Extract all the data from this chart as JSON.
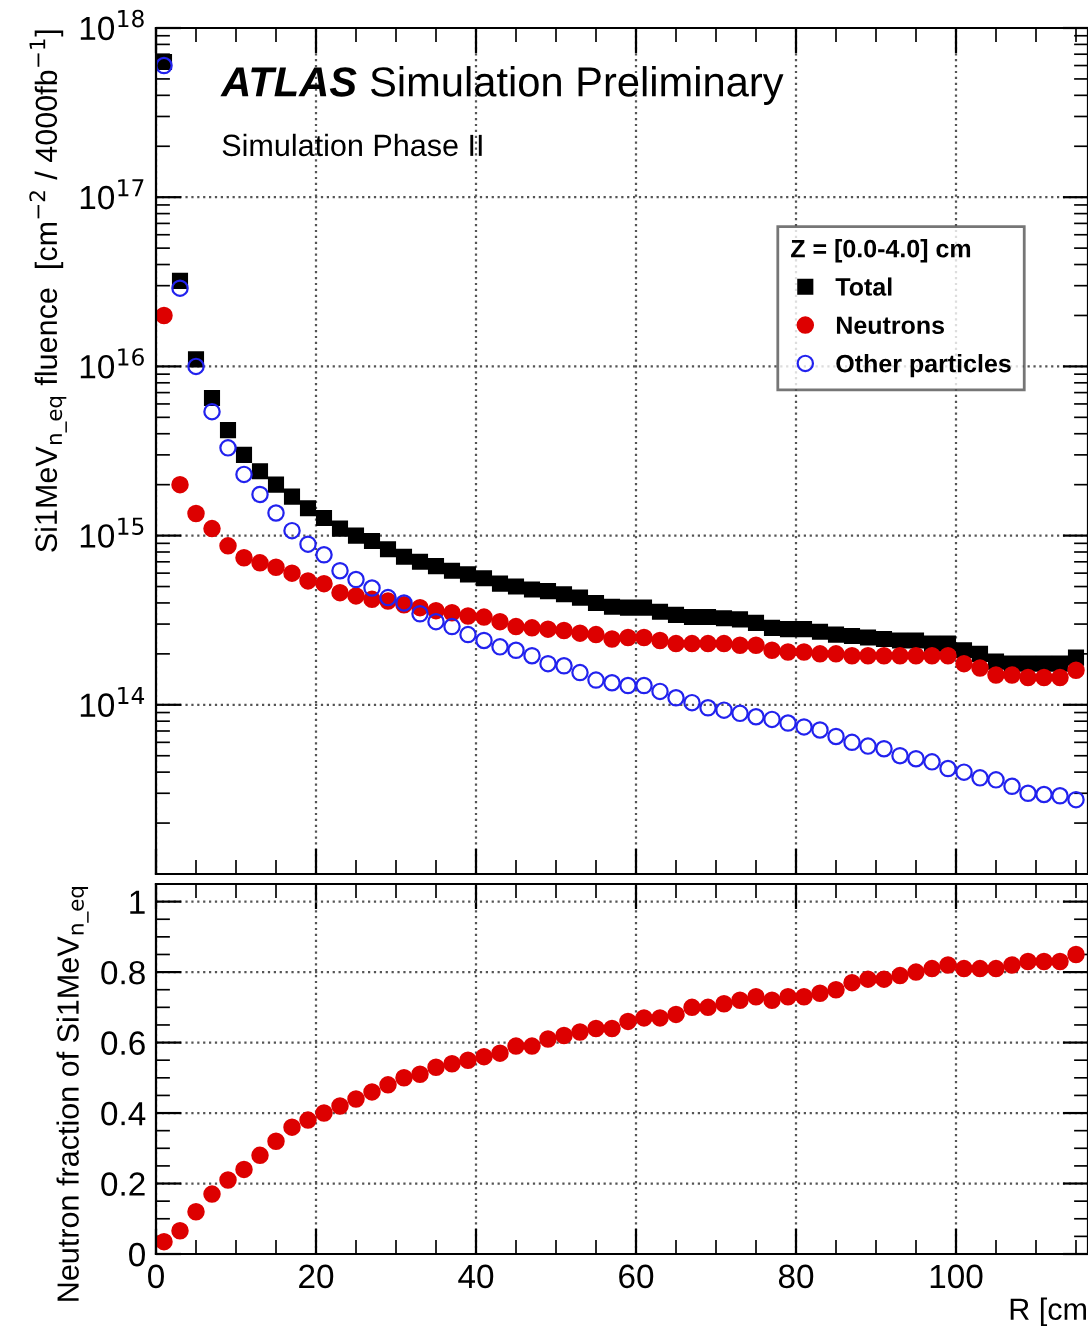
{
  "chart_data": [
    {
      "type": "scatter",
      "title": "ATLAS Simulation Preliminary",
      "subtitle": "Simulation Phase II",
      "ylabel": "Si1MeV$_{n_eq}$ fluence  [cm$^{−2}$ / 4000fb$^{−1}$]",
      "legend_title": "Z = [0.0-4.0] cm",
      "legend": "top right",
      "grid": true,
      "log": "y",
      "tick_labels": "y",
      "x": [
        1,
        3,
        5,
        7,
        9,
        11,
        13,
        15,
        17,
        19,
        21,
        23,
        25,
        27,
        29,
        31,
        33,
        35,
        37,
        39,
        41,
        43,
        45,
        47,
        49,
        51,
        53,
        55,
        57,
        59,
        61,
        63,
        65,
        67,
        69,
        71,
        73,
        75,
        77,
        79,
        81,
        83,
        85,
        87,
        89,
        91,
        93,
        95,
        97,
        99,
        101,
        103,
        105,
        107,
        109,
        111,
        113,
        115
      ],
      "xlim": [
        0,
        116.5
      ],
      "xticks": [
        0,
        20,
        40,
        60,
        80,
        100
      ],
      "ylim": [
        10000000000000.0,
        1e+18
      ],
      "yticks": [
        {
          "value": 100000000000000.0,
          "label": "10$^{14}$"
        },
        {
          "value": 1000000000000000.0,
          "label": "10$^{15}$"
        },
        {
          "value": 1e+16,
          "label": "10$^{16}$"
        },
        {
          "value": 1e+17,
          "label": "10$^{17}$"
        },
        {
          "value": 1e+18,
          "label": "10$^{18}$"
        }
      ],
      "series": [
        {
          "name": "Total",
          "color": "#000000",
          "marker": "square",
          "values": [
            6.3e+17,
            3.2e+16,
            1.1e+16,
            6500000000000000.0,
            4200000000000000.0,
            3000000000000000.0,
            2400000000000000.0,
            2000000000000000.0,
            1700000000000000.0,
            1450000000000000.0,
            1270000000000000.0,
            1100000000000000.0,
            1000000000000000.0,
            930000000000000.0,
            830000000000000.0,
            750000000000000.0,
            700000000000000.0,
            660000000000000.0,
            620000000000000.0,
            590000000000000.0,
            560000000000000.0,
            520000000000000.0,
            500000000000000.0,
            480000000000000.0,
            470000000000000.0,
            450000000000000.0,
            430000000000000.0,
            400000000000000.0,
            380000000000000.0,
            375000000000000.0,
            375000000000000.0,
            355000000000000.0,
            340000000000000.0,
            330000000000000.0,
            330000000000000.0,
            325000000000000.0,
            320000000000000.0,
            305000000000000.0,
            285000000000000.0,
            280000000000000.0,
            280000000000000.0,
            270000000000000.0,
            260000000000000.0,
            255000000000000.0,
            250000000000000.0,
            245000000000000.0,
            240000000000000.0,
            240000000000000.0,
            230000000000000.0,
            230000000000000.0,
            210000000000000.0,
            200000000000000.0,
            180000000000000.0,
            175000000000000.0,
            175000000000000.0,
            175000000000000.0,
            175000000000000.0,
            190000000000000.0
          ]
        },
        {
          "name": "Neutrons",
          "color": "#dd0000",
          "marker": "circle",
          "values": [
            2e+16,
            2000000000000000.0,
            1350000000000000.0,
            1100000000000000.0,
            870000000000000.0,
            740000000000000.0,
            690000000000000.0,
            650000000000000.0,
            600000000000000.0,
            540000000000000.0,
            520000000000000.0,
            460000000000000.0,
            440000000000000.0,
            420000000000000.0,
            410000000000000.0,
            390000000000000.0,
            375000000000000.0,
            360000000000000.0,
            350000000000000.0,
            335000000000000.0,
            330000000000000.0,
            310000000000000.0,
            290000000000000.0,
            285000000000000.0,
            280000000000000.0,
            275000000000000.0,
            265000000000000.0,
            260000000000000.0,
            245000000000000.0,
            250000000000000.0,
            250000000000000.0,
            240000000000000.0,
            230000000000000.0,
            230000000000000.0,
            230000000000000.0,
            230000000000000.0,
            225000000000000.0,
            225000000000000.0,
            210000000000000.0,
            205000000000000.0,
            205000000000000.0,
            200000000000000.0,
            200000000000000.0,
            195000000000000.0,
            195000000000000.0,
            195000000000000.0,
            195000000000000.0,
            195000000000000.0,
            195000000000000.0,
            195000000000000.0,
            175000000000000.0,
            165000000000000.0,
            150000000000000.0,
            150000000000000.0,
            145000000000000.0,
            145000000000000.0,
            145000000000000.0,
            160000000000000.0
          ]
        },
        {
          "name": "Other particles",
          "color": "#2222ee",
          "marker": "circle",
          "values": [
            6e+17,
            2.9e+16,
            1e+16,
            5400000000000000.0,
            3300000000000000.0,
            2300000000000000.0,
            1750000000000000.0,
            1360000000000000.0,
            1070000000000000.0,
            890000000000000.0,
            770000000000000.0,
            620000000000000.0,
            550000000000000.0,
            490000000000000.0,
            430000000000000.0,
            400000000000000.0,
            345000000000000.0,
            310000000000000.0,
            290000000000000.0,
            260000000000000.0,
            240000000000000.0,
            220000000000000.0,
            210000000000000.0,
            195000000000000.0,
            175000000000000.0,
            170000000000000.0,
            155000000000000.0,
            140000000000000.0,
            135000000000000.0,
            130000000000000.0,
            130000000000000.0,
            120000000000000.0,
            110000000000000.0,
            103000000000000.0,
            96000000000000.0,
            93000000000000.0,
            89000000000000.0,
            85000000000000.0,
            82000000000000.0,
            78000000000000.0,
            74000000000000.0,
            71000000000000.0,
            65000000000000.0,
            60000000000000.0,
            57000000000000.0,
            55000000000000.0,
            50000000000000.0,
            48000000000000.0,
            46000000000000.0,
            42000000000000.0,
            40000000000000.0,
            37000000000000.0,
            36000000000000.0,
            33000000000000.0,
            30000000000000.0,
            29500000000000.0,
            29000000000000.0,
            27500000000000.0
          ]
        }
      ]
    },
    {
      "type": "scatter",
      "xlabel": "R [cm",
      "ylabel": "Neutron fraction of Si1MeV$_{n_eq}$",
      "grid": true,
      "marker": "circle",
      "x": [
        1,
        3,
        5,
        7,
        9,
        11,
        13,
        15,
        17,
        19,
        21,
        23,
        25,
        27,
        29,
        31,
        33,
        35,
        37,
        39,
        41,
        43,
        45,
        47,
        49,
        51,
        53,
        55,
        57,
        59,
        61,
        63,
        65,
        67,
        69,
        71,
        73,
        75,
        77,
        79,
        81,
        83,
        85,
        87,
        89,
        91,
        93,
        95,
        97,
        99,
        101,
        103,
        105,
        107,
        109,
        111,
        113,
        115
      ],
      "xlim": [
        0,
        116.5
      ],
      "xticks": [
        0,
        20,
        40,
        60,
        80,
        100
      ],
      "ylim": [
        0,
        1.05
      ],
      "yticks": [
        0,
        0.2,
        0.4,
        0.6,
        0.8,
        1
      ],
      "series": [
        {
          "color": "#dd0000",
          "values": [
            0.035,
            0.066,
            0.12,
            0.17,
            0.21,
            0.24,
            0.28,
            0.32,
            0.36,
            0.38,
            0.4,
            0.42,
            0.44,
            0.46,
            0.48,
            0.5,
            0.51,
            0.53,
            0.54,
            0.55,
            0.56,
            0.57,
            0.59,
            0.59,
            0.61,
            0.62,
            0.63,
            0.64,
            0.64,
            0.66,
            0.67,
            0.67,
            0.68,
            0.7,
            0.7,
            0.71,
            0.72,
            0.73,
            0.72,
            0.73,
            0.73,
            0.74,
            0.75,
            0.77,
            0.78,
            0.78,
            0.79,
            0.8,
            0.81,
            0.82,
            0.81,
            0.81,
            0.81,
            0.82,
            0.83,
            0.83,
            0.83,
            0.85
          ]
        }
      ]
    }
  ]
}
